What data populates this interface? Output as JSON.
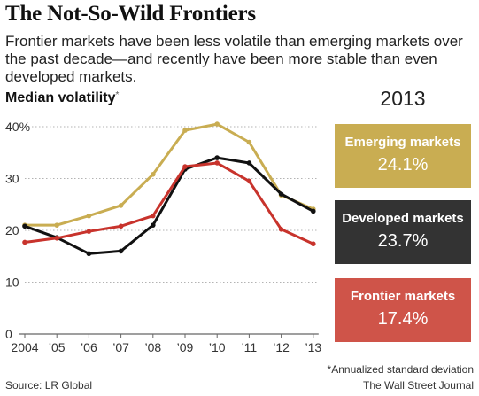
{
  "header": {
    "title": "The Not-So-Wild Frontiers",
    "subtitle": "Frontier markets have been less volatile than emerging markets over the past decade—and recently have been more stable than even developed markets.",
    "metric_label": "Median volatility",
    "metric_mark": "*"
  },
  "panel": {
    "year": "2013",
    "boxes": [
      {
        "name": "Emerging markets",
        "value": "24.1%",
        "color": "#c9ad52"
      },
      {
        "name": "Developed markets",
        "value": "23.7%",
        "color": "#333333"
      },
      {
        "name": "Frontier markets",
        "value": "17.4%",
        "color": "#cf5449"
      }
    ]
  },
  "footer": {
    "footnote": "*Annualized standard deviation",
    "source": "Source: LR Global",
    "brand": "The Wall Street Journal"
  },
  "chart_data": {
    "type": "line",
    "categories": [
      "2004",
      "’05",
      "’06",
      "’07",
      "’08",
      "’09",
      "’10",
      "’11",
      "’12",
      "’13"
    ],
    "ytick_labels": [
      "0",
      "10",
      "20",
      "30",
      "40%"
    ],
    "ylim": [
      0,
      40
    ],
    "grid": true,
    "series": [
      {
        "name": "Emerging markets",
        "color": "#c9ad52",
        "values": [
          21.0,
          21.0,
          22.8,
          24.8,
          30.8,
          39.3,
          40.5,
          37.0,
          26.8,
          24.1
        ]
      },
      {
        "name": "Developed markets",
        "color": "#111111",
        "values": [
          20.8,
          18.6,
          15.5,
          16.0,
          21.0,
          31.8,
          34.0,
          33.0,
          27.0,
          23.7
        ]
      },
      {
        "name": "Frontier markets",
        "color": "#c8332c",
        "values": [
          17.7,
          18.5,
          19.8,
          20.8,
          22.8,
          32.3,
          33.0,
          29.5,
          20.2,
          17.4
        ]
      }
    ]
  }
}
